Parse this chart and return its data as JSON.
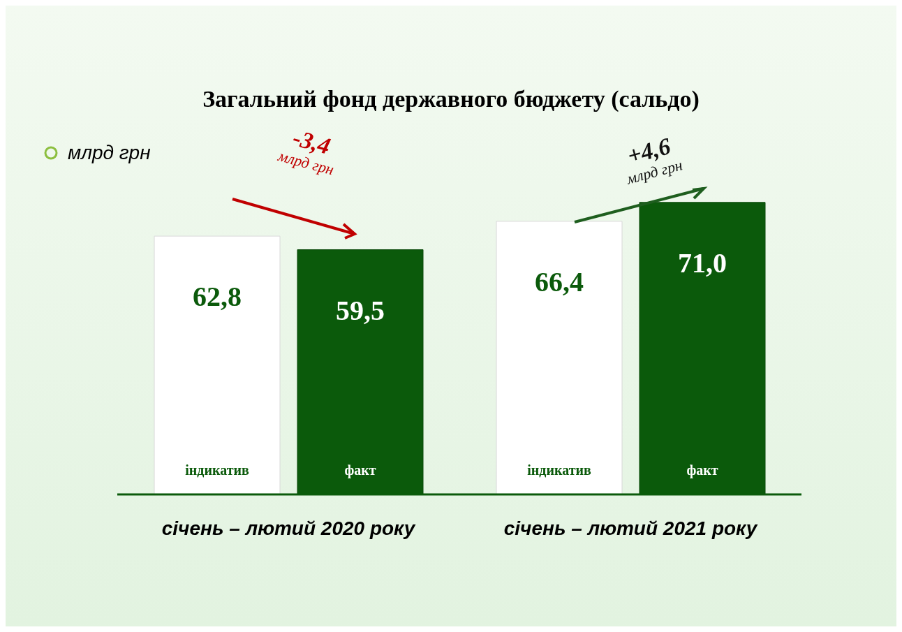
{
  "chart_data": {
    "type": "bar",
    "title": "Загальний фонд державного бюджету (сальдо)",
    "subtitle": "млрд грн",
    "categories": [
      "січень – лютий 2020 року",
      "січень – лютий 2021 року"
    ],
    "series": [
      {
        "name": "індикатив",
        "color": "#ffffff",
        "values": [
          62.8,
          66.4
        ],
        "value_labels": [
          "62,8",
          "66,4"
        ]
      },
      {
        "name": "факт",
        "color": "#0b5a0b",
        "values": [
          59.5,
          71.0
        ],
        "value_labels": [
          "59,5",
          "71,0"
        ]
      }
    ],
    "tick_labels": false,
    "legend": false,
    "grid": false,
    "annotations": [
      "-3,4 млрд грн",
      "+4,6 млрд грн"
    ]
  }
}
